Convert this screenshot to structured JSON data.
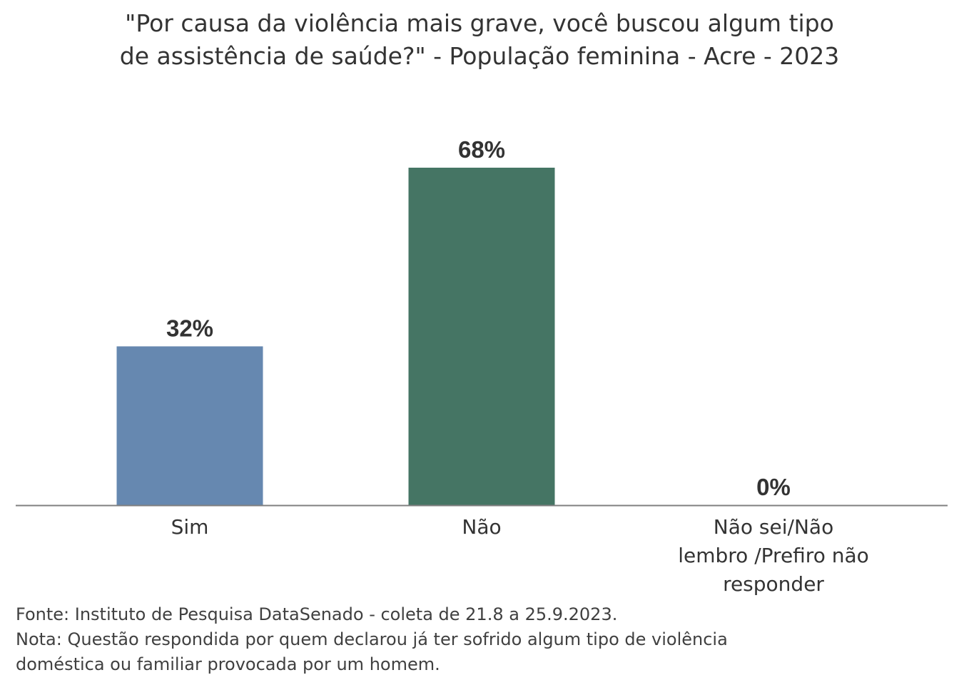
{
  "chart_data": {
    "type": "bar",
    "title_lines": [
      "\"Por causa da violência mais grave, você buscou algum tipo",
      "de assistência de saúde?\" - População feminina - Acre - 2023"
    ],
    "categories": [
      "Sim",
      "Não",
      "Não sei/Não lembro /Prefiro não responder"
    ],
    "category_label_lines": [
      [
        "Sim"
      ],
      [
        "Não"
      ],
      [
        "Não sei/Não",
        "lembro /Prefiro não",
        "responder"
      ]
    ],
    "values": [
      32,
      68,
      0
    ],
    "data_labels": [
      "32%",
      "68%",
      "0%"
    ],
    "colors": [
      "#6688B0",
      "#457564",
      "#457564"
    ],
    "unit": "%",
    "ylim": [
      0,
      68
    ],
    "grid": false,
    "legend": "none",
    "axis_color": "#808080"
  },
  "footer": {
    "source": "Fonte: Instituto de Pesquisa DataSenado - coleta de 21.8 a 25.9.2023.",
    "note_lines": [
      "Nota: Questão respondida por quem declarou já ter sofrido algum tipo de violência",
      "doméstica ou familiar provocada por um homem."
    ]
  }
}
